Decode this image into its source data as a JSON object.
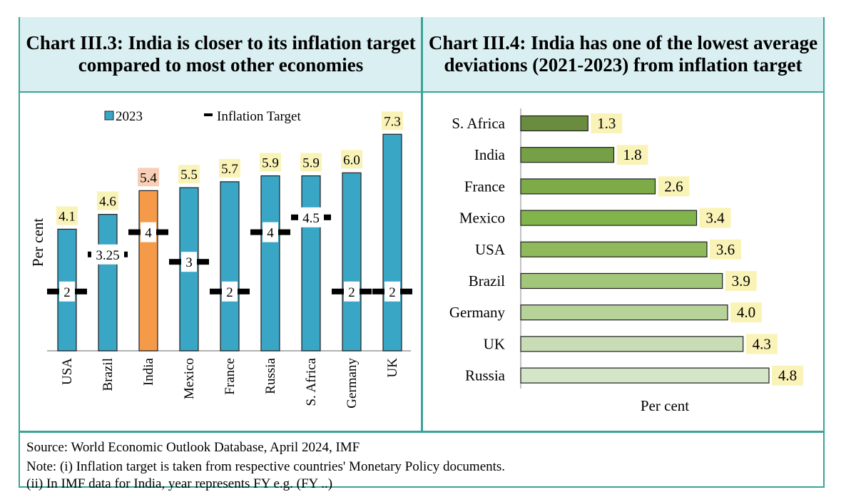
{
  "chart_data": [
    {
      "type": "bar",
      "title": "Chart III.3: India is closer to its inflation target compared to most other economies",
      "categories": [
        "USA",
        "Brazil",
        "India",
        "Mexico",
        "France",
        "Russia",
        "S. Africa",
        "Germany",
        "UK"
      ],
      "series": [
        {
          "name": "2023",
          "values": [
            4.1,
            4.6,
            5.4,
            5.5,
            5.7,
            5.9,
            5.9,
            6.0,
            7.3
          ]
        },
        {
          "name": "Inflation Target",
          "values": [
            2,
            3.25,
            4,
            3,
            2,
            4,
            4.5,
            2,
            2
          ]
        }
      ],
      "value_labels": [
        "4.1",
        "4.6",
        "5.4",
        "5.5",
        "5.7",
        "5.9",
        "5.9",
        "6.0",
        "7.3"
      ],
      "target_labels": [
        "2",
        "3.25",
        "4",
        "3",
        "2",
        "4",
        "4.5",
        "2",
        "2"
      ],
      "highlight_category": "India",
      "ylabel": "Per cent",
      "ylim": [
        0,
        7.5
      ],
      "legend_position": "top",
      "colors": {
        "bar": "#3aa6c6",
        "highlight": "#f49a48",
        "value_label_bg": "#faf3b8",
        "highlight_label_bg": "#f8cfb6",
        "target": "#000000"
      }
    },
    {
      "type": "bar",
      "orientation": "horizontal",
      "title": "Chart III.4: India has one of the lowest average deviations (2021-2023) from inflation target",
      "categories": [
        "S. Africa",
        "India",
        "France",
        "Mexico",
        "USA",
        "Brazil",
        "Germany",
        "UK",
        "Russia"
      ],
      "values": [
        1.3,
        1.8,
        2.6,
        3.4,
        3.6,
        3.9,
        4.0,
        4.3,
        4.8
      ],
      "value_labels": [
        "1.3",
        "1.8",
        "2.6",
        "3.4",
        "3.6",
        "3.9",
        "4.0",
        "4.3",
        "4.8"
      ],
      "xlabel": "Per cent",
      "xlim": [
        0,
        5
      ],
      "colors": [
        "#6a8c3f",
        "#75a046",
        "#7cab48",
        "#82b44c",
        "#8fba5b",
        "#a3c77a",
        "#b7d39a",
        "#c8ddb6",
        "#d5e6c8"
      ],
      "value_label_bg": "#faf3b8"
    }
  ],
  "footer": {
    "source": "Source: World Economic Outlook Database, April 2024, IMF",
    "note1": "Note: (i) Inflation target is taken from respective countries' Monetary Policy documents.",
    "note2": "(ii) In IMF data for India, year represents FY e.g. (FY ..)"
  }
}
